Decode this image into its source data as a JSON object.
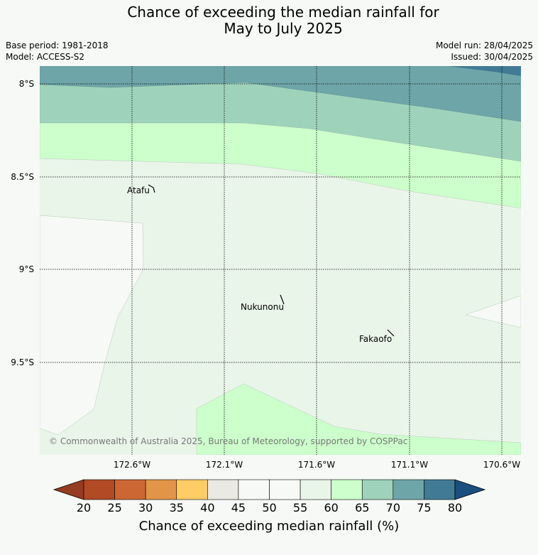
{
  "title_line1": "Chance of exceeding the median rainfall for",
  "title_line2": "May to July 2025",
  "base_period": "Base period: 1981-2018",
  "model": "Model: ACCESS-S2",
  "model_run": "Model run: 28/04/2025",
  "issued": "Issued: 30/04/2025",
  "lat_labels": [
    "8°S",
    "8.5°S",
    "9°S",
    "9.5°S"
  ],
  "lon_labels": [
    "172.6°W",
    "172.1°W",
    "171.6°W",
    "171.1°W",
    "170.6°W"
  ],
  "places": {
    "atafu": "Atafu",
    "nukunonu": "Nukunonu",
    "fakaofo": "Fakaofo"
  },
  "copyright": "© Commonwealth of Australia 2025, Bureau of Meteorology, supported by COSPPac",
  "colorbar": {
    "ticks": [
      "20",
      "25",
      "30",
      "35",
      "40",
      "45",
      "50",
      "55",
      "60",
      "65",
      "70",
      "75",
      "80"
    ],
    "colors": [
      "#b14a25",
      "#cc6633",
      "#e29548",
      "#ffcc66",
      "#eae9e4",
      "#f6f9f5",
      "#f6f9f5",
      "#eaf5ea",
      "#ccffcc",
      "#9ed2bb",
      "#6ea5a8",
      "#417a94"
    ],
    "under_color": "#953c23",
    "over_color": "#1a4f80",
    "label": "Chance of exceeding median rainfall (%)"
  }
}
